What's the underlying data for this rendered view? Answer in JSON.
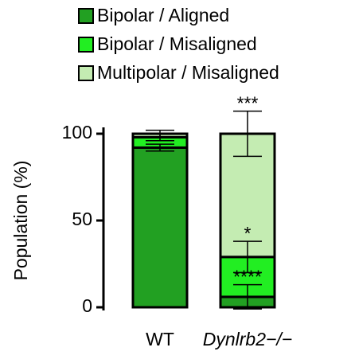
{
  "chart_data": {
    "type": "stacked_bar",
    "y_label": "Population (%)",
    "categories": [
      "WT",
      "Dynlrb2−/−"
    ],
    "series": [
      {
        "name": "Bipolar / Aligned",
        "color": "#22a022",
        "values": [
          92,
          6
        ],
        "errors": [
          2,
          7
        ],
        "annotations": [
          null,
          "****"
        ]
      },
      {
        "name": "Bipolar / Misaligned",
        "color": "#22ee22",
        "values": [
          6,
          23
        ],
        "errors": [
          2,
          9
        ],
        "annotations": [
          null,
          "*"
        ]
      },
      {
        "name": "Multipolar / Misaligned",
        "color": "#c4ecb2",
        "values": [
          2,
          71
        ],
        "errors": [
          2,
          13
        ],
        "annotations": [
          null,
          "***"
        ]
      }
    ],
    "ylim": [
      0,
      100
    ],
    "yticks": [
      0,
      50,
      100
    ],
    "legend": "top"
  }
}
